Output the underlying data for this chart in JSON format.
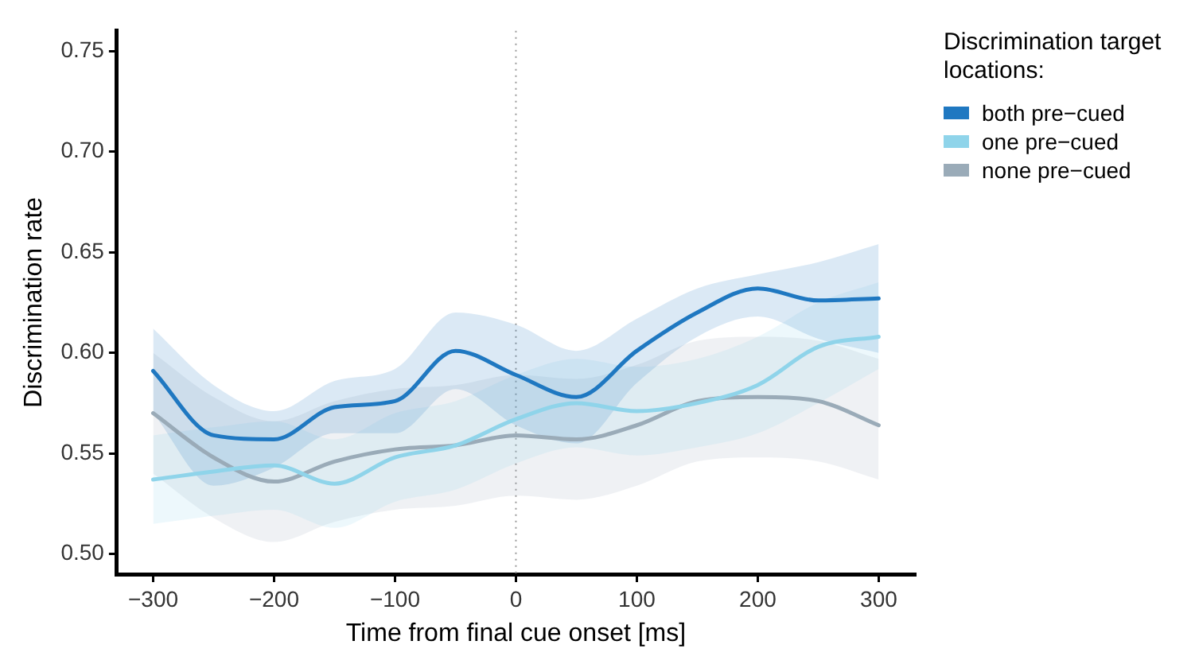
{
  "chart_data": {
    "type": "line",
    "xlabel": "Time from final cue onset [ms]",
    "ylabel": "Discrimination rate",
    "legend_title": "Discrimination target locations:",
    "legend": "right",
    "grid": false,
    "marker": "none",
    "line_style": "solid",
    "x": [
      -300,
      -250,
      -200,
      -150,
      -100,
      -50,
      0,
      50,
      100,
      150,
      200,
      250,
      300
    ],
    "xlim": [
      -330,
      330
    ],
    "xticks": [
      -300,
      -200,
      -100,
      0,
      100,
      200,
      300
    ],
    "ylim": [
      0.49,
      0.76
    ],
    "yticks": [
      {
        "value": 0.5,
        "label": "0.50"
      },
      {
        "value": 0.55,
        "label": "0.55"
      },
      {
        "value": 0.6,
        "label": "0.60"
      },
      {
        "value": 0.65,
        "label": "0.65"
      },
      {
        "value": 0.7,
        "label": "0.70"
      },
      {
        "value": 0.75,
        "label": "0.75"
      }
    ],
    "ref_lines": [
      {
        "axis": "x",
        "value": 0,
        "color": "#999999",
        "line_style": "dotted"
      }
    ],
    "series": [
      {
        "name": "both pre−cued",
        "color": "#1f78c1",
        "values": [
          0.591,
          0.559,
          0.557,
          0.573,
          0.576,
          0.601,
          0.589,
          0.578,
          0.601,
          0.62,
          0.632,
          0.626,
          0.627
        ],
        "lower": [
          0.57,
          0.534,
          0.543,
          0.56,
          0.56,
          0.582,
          0.564,
          0.555,
          0.585,
          0.608,
          0.618,
          0.607,
          0.6
        ],
        "upper": [
          0.612,
          0.584,
          0.571,
          0.586,
          0.592,
          0.62,
          0.614,
          0.601,
          0.617,
          0.632,
          0.639,
          0.645,
          0.654
        ]
      },
      {
        "name": "one pre−cued",
        "color": "#8fd4ea",
        "values": [
          0.537,
          0.541,
          0.544,
          0.535,
          0.548,
          0.554,
          0.567,
          0.575,
          0.571,
          0.575,
          0.584,
          0.603,
          0.608
        ],
        "lower": [
          0.515,
          0.519,
          0.522,
          0.513,
          0.526,
          0.532,
          0.545,
          0.553,
          0.549,
          0.553,
          0.56,
          0.575,
          0.592
        ],
        "upper": [
          0.559,
          0.563,
          0.566,
          0.557,
          0.57,
          0.576,
          0.589,
          0.597,
          0.593,
          0.597,
          0.608,
          0.625,
          0.635
        ]
      },
      {
        "name": "none pre−cued",
        "color": "#9aabb8",
        "values": [
          0.57,
          0.548,
          0.536,
          0.546,
          0.552,
          0.554,
          0.559,
          0.557,
          0.564,
          0.576,
          0.578,
          0.576,
          0.564
        ],
        "lower": [
          0.54,
          0.518,
          0.506,
          0.516,
          0.522,
          0.524,
          0.529,
          0.527,
          0.534,
          0.546,
          0.548,
          0.546,
          0.537
        ],
        "upper": [
          0.6,
          0.578,
          0.566,
          0.576,
          0.582,
          0.584,
          0.589,
          0.587,
          0.594,
          0.606,
          0.608,
          0.606,
          0.597
        ]
      }
    ]
  }
}
